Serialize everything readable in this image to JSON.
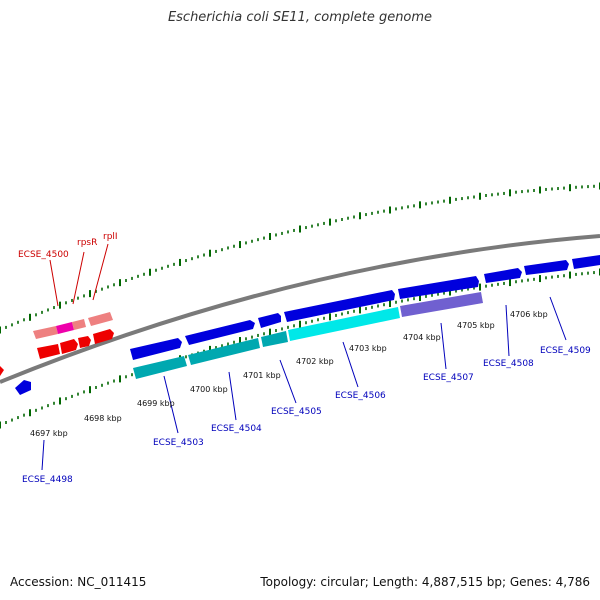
{
  "title": "Escherichia coli SE11, complete genome",
  "footer": {
    "accession": "Accession: NC_011415",
    "topology": "Topology: circular; Length: 4,887,515 bp; Genes: 4,786"
  },
  "colors": {
    "backbone": "#888888",
    "ticks": "#006600",
    "gene_blue": "#0000dd",
    "gene_cyan": "#00e0e0",
    "gene_teal": "#00a8b0",
    "gene_purple": "#7060d0",
    "gene_red": "#ee0000",
    "gene_pink": "#ee8080",
    "gene_magenta": "#ee00aa",
    "label_blue": "#0000bb",
    "label_red": "#cc0000"
  },
  "kbp_labels": [
    "4697 kbp",
    "4698 kbp",
    "4699 kbp",
    "4700 kbp",
    "4701 kbp",
    "4702 kbp",
    "4703 kbp",
    "4704 kbp",
    "4705 kbp",
    "4706 kbp"
  ],
  "gene_labels_blue": [
    "ECSE_4498",
    "ECSE_4503",
    "ECSE_4504",
    "ECSE_4505",
    "ECSE_4506",
    "ECSE_4507",
    "ECSE_4508",
    "ECSE_4509"
  ],
  "gene_labels_red": [
    "ECSE_4500",
    "rpsR",
    "rplI"
  ]
}
